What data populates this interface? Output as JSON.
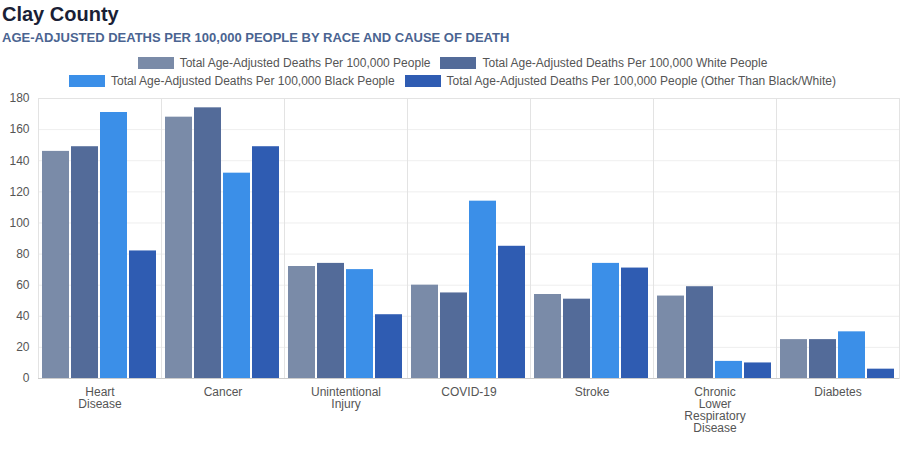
{
  "chart_data": {
    "type": "bar",
    "title": "Clay County",
    "subtitle": "AGE-ADJUSTED DEATHS PER 100,000 PEOPLE BY RACE AND CAUSE OF DEATH",
    "categories": [
      "Heart Disease",
      "Cancer",
      "Unintentional Injury",
      "COVID-19",
      "Stroke",
      "Chronic Lower Respiratory Disease",
      "Diabetes"
    ],
    "series": [
      {
        "name": "Total Age-Adjusted Deaths Per 100,000 People",
        "color": "#7a8ba8",
        "values": [
          146,
          168,
          72,
          60,
          54,
          53,
          25
        ]
      },
      {
        "name": "Total Age-Adjusted Deaths Per 100,000 White People",
        "color": "#536b99",
        "values": [
          149,
          174,
          74,
          55,
          51,
          59,
          25
        ]
      },
      {
        "name": "Total Age-Adjusted Deaths Per 100,000 Black People",
        "color": "#3b8fe8",
        "values": [
          171,
          132,
          70,
          114,
          74,
          11,
          30
        ]
      },
      {
        "name": "Total Age-Adjusted Deaths Per 100,000 People (Other Than Black/White)",
        "color": "#2f5cb2",
        "values": [
          82,
          149,
          41,
          85,
          71,
          10,
          6
        ]
      }
    ],
    "ylim": [
      0,
      180
    ],
    "yticks": [
      0,
      20,
      40,
      60,
      80,
      100,
      120,
      140,
      160,
      180
    ],
    "grid": true,
    "legend": "top"
  }
}
